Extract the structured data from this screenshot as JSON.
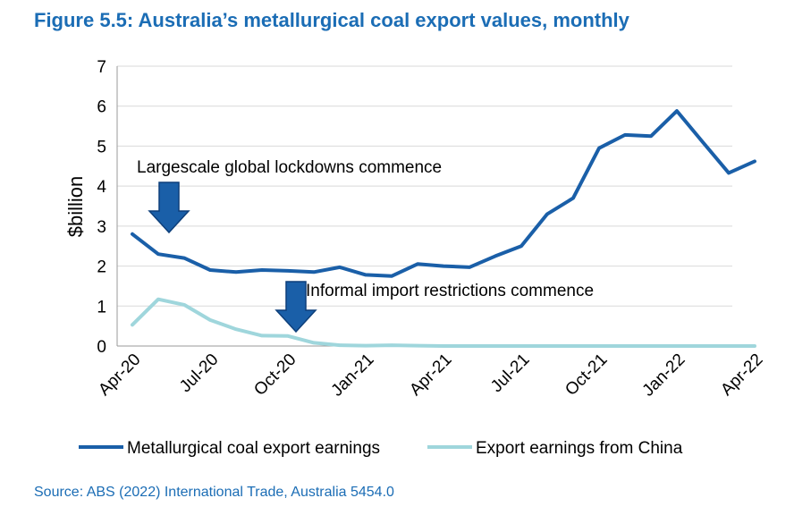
{
  "title": "Figure 5.5: Australia’s metallurgical coal export values, monthly",
  "source": "Source: ABS (2022) International Trade, Australia 5454.0",
  "colors": {
    "title": "#1b6db5",
    "series1": "#1a5fa8",
    "series2": "#9fd6dc",
    "arrow_fill": "#1a5fa8",
    "arrow_stroke": "#0d3f7a"
  },
  "chart_data": {
    "type": "line",
    "ylabel": "$billion",
    "xlabel": "",
    "ylim": [
      0,
      7
    ],
    "yticks": [
      "0",
      "1",
      "2",
      "3",
      "4",
      "5",
      "6",
      "7"
    ],
    "x": [
      "Apr-20",
      "May-20",
      "Jun-20",
      "Jul-20",
      "Aug-20",
      "Sep-20",
      "Oct-20",
      "Nov-20",
      "Dec-20",
      "Jan-21",
      "Feb-21",
      "Mar-21",
      "Apr-21",
      "May-21",
      "Jun-21",
      "Jul-21",
      "Aug-21",
      "Sep-21",
      "Oct-21",
      "Nov-21",
      "Dec-21",
      "Jan-22",
      "Feb-22",
      "Mar-22",
      "Apr-22"
    ],
    "xtick_labels": [
      {
        "index": 0,
        "label": "Apr-20"
      },
      {
        "index": 3,
        "label": "Jul-20"
      },
      {
        "index": 6,
        "label": "Oct-20"
      },
      {
        "index": 9,
        "label": "Jan-21"
      },
      {
        "index": 12,
        "label": "Apr-21"
      },
      {
        "index": 15,
        "label": "Jul-21"
      },
      {
        "index": 18,
        "label": "Oct-21"
      },
      {
        "index": 21,
        "label": "Jan-22"
      },
      {
        "index": 24,
        "label": "Apr-22"
      }
    ],
    "series": [
      {
        "name": "Metallurgical coal export earnings",
        "values": [
          2.8,
          2.3,
          2.2,
          1.9,
          1.85,
          1.9,
          1.88,
          1.85,
          1.97,
          1.78,
          1.75,
          2.05,
          2.0,
          1.97,
          2.25,
          2.5,
          3.3,
          3.7,
          4.95,
          5.28,
          5.25,
          5.88,
          5.1,
          4.33,
          4.62
        ]
      },
      {
        "name": "Export earnings from China",
        "values": [
          0.53,
          1.17,
          1.03,
          0.65,
          0.42,
          0.26,
          0.25,
          0.08,
          0.02,
          0.01,
          0.02,
          0.01,
          0.0,
          0.0,
          0.0,
          0.0,
          0.0,
          0.0,
          0.0,
          0.0,
          0.0,
          0.0,
          0.0,
          0.0,
          0.0
        ]
      }
    ],
    "annotations": [
      {
        "text": "Largescale global lockdowns commence",
        "arrow_at_index": 1
      },
      {
        "text": "Informal import restrictions commence",
        "arrow_at_index": 6
      }
    ],
    "grid": true,
    "legend_position": "bottom"
  }
}
